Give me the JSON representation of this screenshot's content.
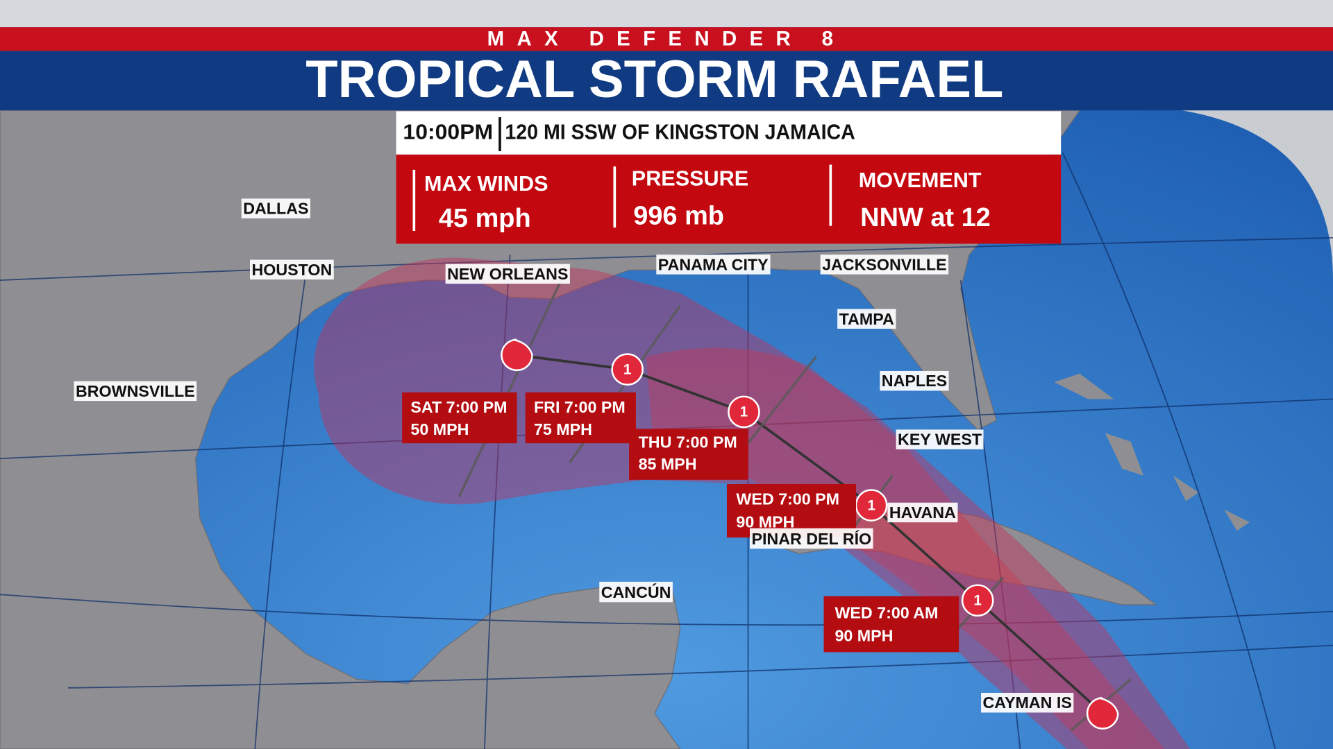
{
  "header": {
    "brand": "MAX DEFENDER 8",
    "title": "TROPICAL STORM RAFAEL"
  },
  "advisory": {
    "time": "10:00PM",
    "location": "120 MI SSW OF KINGSTON JAMAICA"
  },
  "stats": [
    {
      "label": "MAX WINDS",
      "value": "45 mph"
    },
    {
      "label": "PRESSURE",
      "value": "996 mb"
    },
    {
      "label": "MOVEMENT",
      "value": "NNW at 12"
    }
  ],
  "cities": [
    "DALLAS",
    "HOUSTON",
    "NEW ORLEANS",
    "PANAMA CITY",
    "JACKSONVILLE",
    "TAMPA",
    "NAPLES",
    "KEY WEST",
    "BROWNSVILLE",
    "HAVANA",
    "PINAR DEL RÍO",
    "CANCÚN",
    "CAYMAN IS"
  ],
  "forecast": [
    {
      "time": "SAT 7:00 PM",
      "wind": "50 MPH"
    },
    {
      "time": "FRI 7:00 PM",
      "wind": "75 MPH",
      "category": "1"
    },
    {
      "time": "THU 7:00 PM",
      "wind": "85 MPH",
      "category": "1"
    },
    {
      "time": "WED 7:00 PM",
      "wind": "90 MPH",
      "category": "1"
    },
    {
      "time": "WED 7:00 AM",
      "wind": "90 MPH",
      "category": "1"
    }
  ]
}
